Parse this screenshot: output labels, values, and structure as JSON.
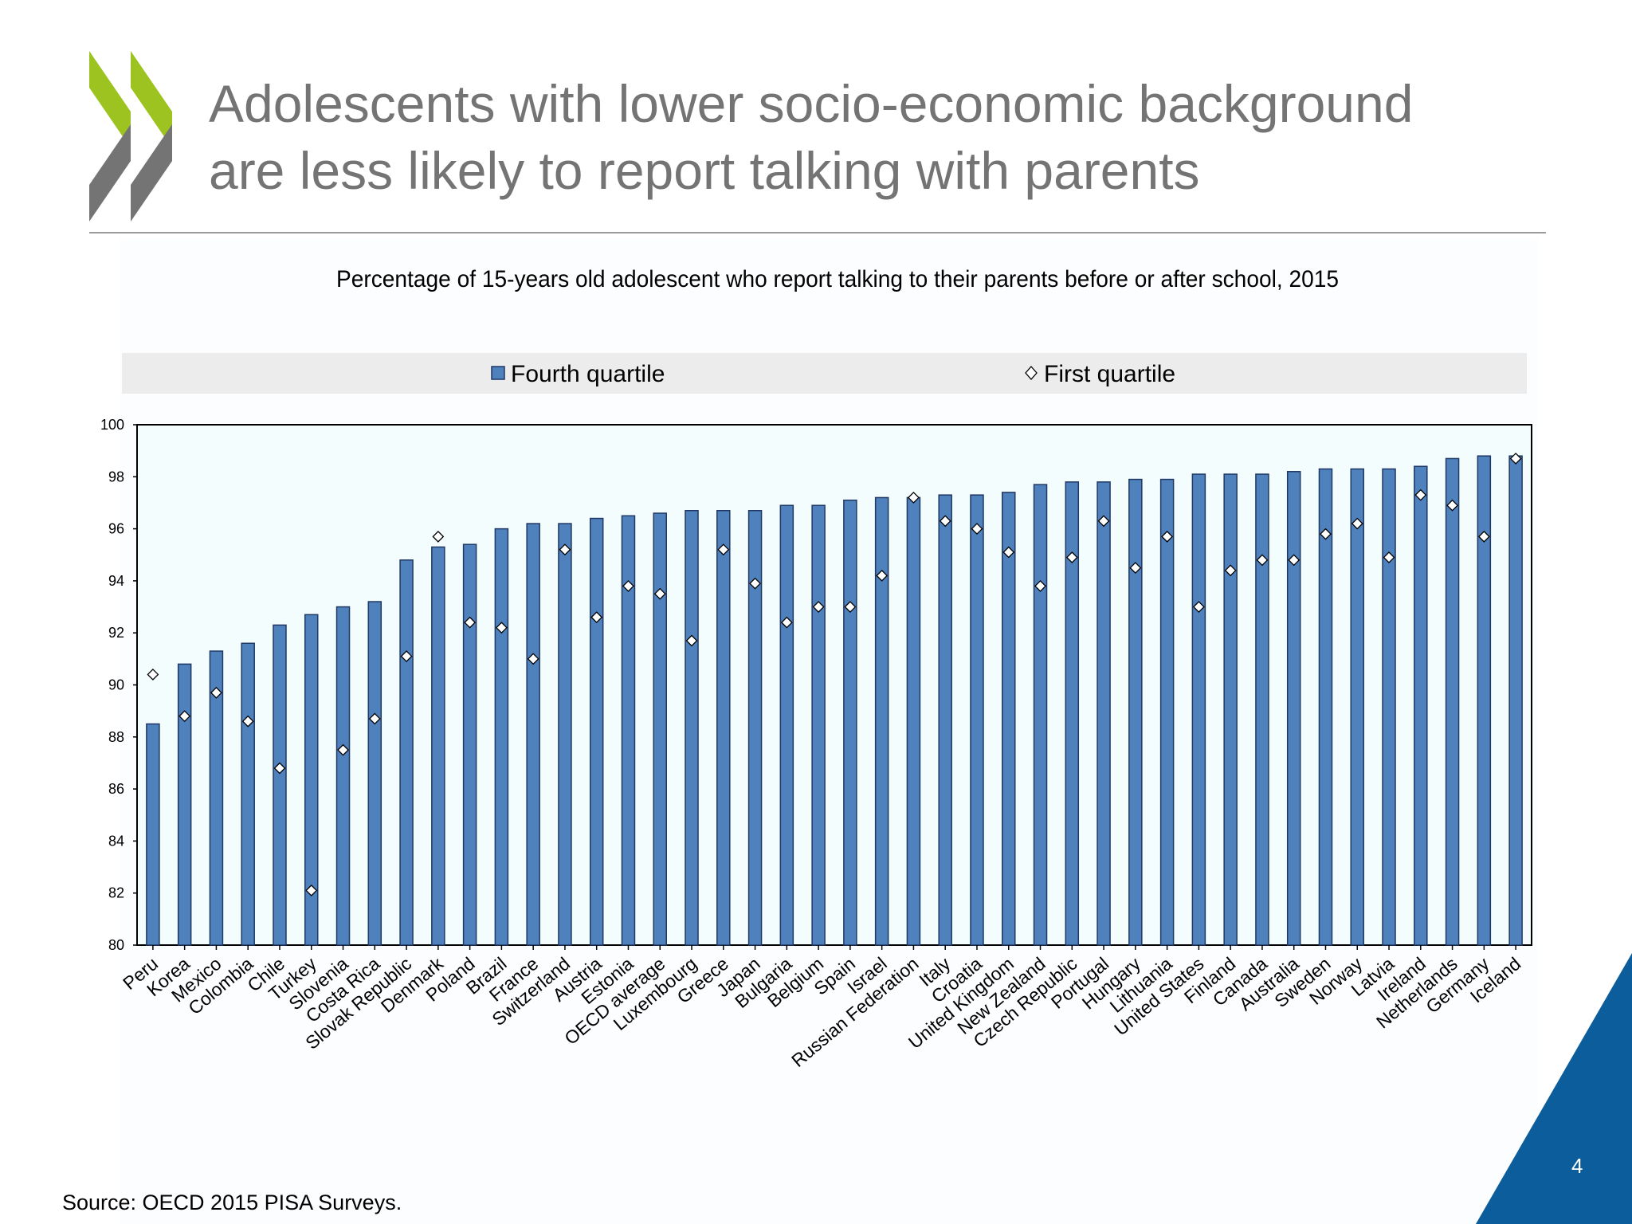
{
  "slide": {
    "title_line1": "Adolescents with lower socio-economic background",
    "title_line2": "are less likely to report talking with parents",
    "source": "Source: OECD 2015 PISA Surveys.",
    "page_number": "4"
  },
  "colors": {
    "bar_fill": "#4f81bd",
    "bar_stroke": "#1f3864",
    "plot_background": "#f3fdfe",
    "legend_background": "#ececec",
    "logo_green": "#9cc31f",
    "logo_grey": "#747474",
    "corner_blue": "#0b5d9b"
  },
  "chart_data": {
    "type": "bar",
    "title": "Percentage of 15-years old adolescent who report talking to their parents before or after school, 2015",
    "xlabel": "",
    "ylabel": "",
    "ylim": [
      80,
      100
    ],
    "y_ticks": [
      80,
      82,
      84,
      86,
      88,
      90,
      92,
      94,
      96,
      98,
      100
    ],
    "grid": false,
    "legend_position": "top",
    "legend": {
      "bar_label": "Fourth quartile",
      "marker_label": "First quartile"
    },
    "categories": [
      "Peru",
      "Korea",
      "Mexico",
      "Colombia",
      "Chile",
      "Turkey",
      "Slovenia",
      "Costa Rica",
      "Slovak Republic",
      "Denmark",
      "Poland",
      "Brazil",
      "France",
      "Switzerland",
      "Austria",
      "Estonia",
      "OECD average",
      "Luxembourg",
      "Greece",
      "Japan",
      "Bulgaria",
      "Belgium",
      "Spain",
      "Israel",
      "Russian Federation",
      "Italy",
      "Croatia",
      "United Kingdom",
      "New Zealand",
      "Czech Republic",
      "Portugal",
      "Hungary",
      "Lithuania",
      "United States",
      "Finland",
      "Canada",
      "Australia",
      "Sweden",
      "Norway",
      "Latvia",
      "Ireland",
      "Netherlands",
      "Germany",
      "Iceland"
    ],
    "series": [
      {
        "name": "Fourth quartile",
        "marker": "bar",
        "values": [
          88.5,
          90.8,
          91.3,
          91.6,
          92.3,
          92.7,
          93.0,
          93.2,
          94.8,
          95.3,
          95.4,
          96.0,
          96.2,
          96.2,
          96.4,
          96.5,
          96.6,
          96.7,
          96.7,
          96.7,
          96.9,
          96.9,
          97.1,
          97.2,
          97.2,
          97.3,
          97.3,
          97.4,
          97.7,
          97.8,
          97.8,
          97.9,
          97.9,
          98.1,
          98.1,
          98.1,
          98.2,
          98.3,
          98.3,
          98.3,
          98.4,
          98.7,
          98.8,
          98.8
        ]
      },
      {
        "name": "First quartile",
        "marker": "diamond",
        "values": [
          90.4,
          88.8,
          89.7,
          88.6,
          86.8,
          82.1,
          87.5,
          88.7,
          91.1,
          95.7,
          92.4,
          92.2,
          91.0,
          95.2,
          92.6,
          93.8,
          93.5,
          91.7,
          95.2,
          93.9,
          92.4,
          93.0,
          93.0,
          94.2,
          97.2,
          96.3,
          96.0,
          95.1,
          93.8,
          94.9,
          96.3,
          94.5,
          95.7,
          93.0,
          94.4,
          94.8,
          94.8,
          95.8,
          96.2,
          94.9,
          97.3,
          96.9,
          95.7,
          98.7
        ]
      }
    ]
  }
}
